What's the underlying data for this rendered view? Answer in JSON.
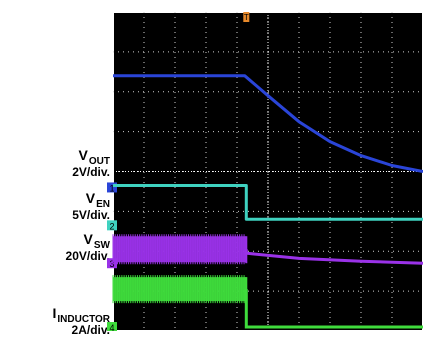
{
  "colors": {
    "background": "#000000",
    "vout": "#2a45d8",
    "ven": "#3fd2c0",
    "vsw": "#9a32e8",
    "iinductor": "#3fdc3c",
    "trigger": "#e8892a",
    "grid": "#cfcfcf"
  },
  "channels": [
    {
      "id": "vout",
      "main": "V",
      "sub": "OUT",
      "scale": "2V/div."
    },
    {
      "id": "ven",
      "main": "V",
      "sub": "EN",
      "scale": "5V/div."
    },
    {
      "id": "vsw",
      "main": "V",
      "sub": "SW",
      "scale": "20V/div."
    },
    {
      "id": "iinductor",
      "main": "I",
      "sub": "INDUCTOR",
      "scale": "2A/div."
    }
  ],
  "chart_data": {
    "type": "line",
    "title": "",
    "xlabel": "",
    "ylabel": "",
    "grid": true,
    "x_divisions": 10,
    "y_divisions": 8,
    "trigger_time_div": 4.3,
    "series": [
      {
        "name": "VOUT",
        "color": "#2a45d8",
        "ground_div": 4.4,
        "description_values": [
          {
            "x_div": 0.0,
            "y_div": 2.8
          },
          {
            "x_div": 4.25,
            "y_div": 2.8
          },
          {
            "x_div": 5.0,
            "y_div": 2.3
          },
          {
            "x_div": 6.0,
            "y_div": 1.65
          },
          {
            "x_div": 7.0,
            "y_div": 1.15
          },
          {
            "x_div": 8.0,
            "y_div": 0.8
          },
          {
            "x_div": 9.0,
            "y_div": 0.55
          },
          {
            "x_div": 10.0,
            "y_div": 0.4
          }
        ]
      },
      {
        "name": "VEN",
        "color": "#3fd2c0",
        "ground_div": 5.35,
        "description_values": [
          {
            "x_div": 0.0,
            "y_div": 1.0
          },
          {
            "x_div": 4.3,
            "y_div": 1.0
          },
          {
            "x_div": 4.3,
            "y_div": 0.15
          },
          {
            "x_div": 10.0,
            "y_div": 0.15
          }
        ]
      },
      {
        "name": "VSW",
        "color": "#9a32e8",
        "ground_div": 6.3,
        "band": true,
        "description_values": [
          {
            "x_div": 0.0,
            "y_div": 0.35
          },
          {
            "x_div": 4.3,
            "y_div": 0.35
          },
          {
            "x_div": 4.3,
            "y_div": 0.25
          },
          {
            "x_div": 6.0,
            "y_div": 0.12
          },
          {
            "x_div": 8.0,
            "y_div": 0.05
          },
          {
            "x_div": 10.0,
            "y_div": 0.0
          }
        ]
      },
      {
        "name": "IINDUCTOR",
        "color": "#3fdc3c",
        "ground_div": 7.9,
        "band": true,
        "description_values": [
          {
            "x_div": 0.0,
            "y_div": 0.95
          },
          {
            "x_div": 4.3,
            "y_div": 0.95
          },
          {
            "x_div": 4.3,
            "y_div": 0.0
          },
          {
            "x_div": 10.0,
            "y_div": 0.0
          }
        ]
      }
    ]
  }
}
